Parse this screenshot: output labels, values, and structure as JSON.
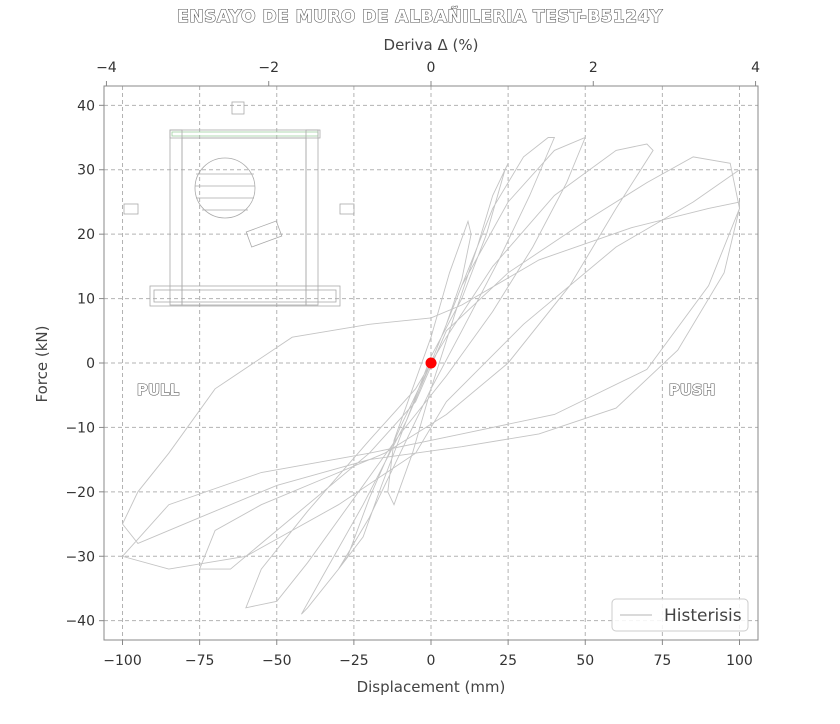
{
  "chart_data": {
    "type": "line",
    "title": "ENSAYO DE MURO DE ALBAÑILERIA TEST-B5124Y",
    "xlabel": "Displacement (mm)",
    "ylabel": "Force (kN)",
    "x2label": "Deriva Δ (%)",
    "xlim": [
      -106,
      106
    ],
    "ylim": [
      -43,
      43
    ],
    "x2lim": [
      -4.03,
      4.03
    ],
    "xticks": [
      -100,
      -75,
      -50,
      -25,
      0,
      25,
      50,
      75,
      100
    ],
    "xtick_labels": [
      "−100",
      "−75",
      "−50",
      "−25",
      "0",
      "25",
      "50",
      "75",
      "100"
    ],
    "yticks": [
      -40,
      -30,
      -20,
      -10,
      0,
      10,
      20,
      30,
      40
    ],
    "ytick_labels": [
      "−40",
      "−30",
      "−20",
      "−10",
      "0",
      "10",
      "20",
      "30",
      "40"
    ],
    "x2ticks": [
      -4,
      -2,
      0,
      2,
      4
    ],
    "x2tick_labels": [
      "−4",
      "−2",
      "0",
      "2",
      "4"
    ],
    "grid": true,
    "legend_position": "bottom-right",
    "annotations": {
      "pull": "PULL",
      "push": "PUSH"
    },
    "series": [
      {
        "name": "Histerisis",
        "color": "#c4c4c4",
        "x": [
          0,
          5,
          10,
          13,
          12,
          6,
          0,
          -6,
          -12,
          -14,
          -12,
          -6,
          0,
          8,
          15,
          20,
          25,
          24,
          18,
          10,
          0,
          -8,
          -16,
          -22,
          -30,
          -27,
          -20,
          -10,
          0,
          10,
          20,
          30,
          38,
          40,
          32,
          22,
          10,
          0,
          -10,
          -20,
          -30,
          -40,
          -42,
          -35,
          -22,
          -8,
          0,
          10,
          25,
          40,
          50,
          50,
          44,
          33,
          20,
          5,
          -10,
          -25,
          -40,
          -50,
          -60,
          -55,
          -40,
          -20,
          -5,
          5,
          20,
          40,
          60,
          70,
          72,
          60,
          45,
          25,
          5,
          -15,
          -35,
          -55,
          -70,
          -75,
          -65,
          -45,
          -20,
          -5,
          5,
          25,
          50,
          70,
          85,
          97,
          100,
          95,
          80,
          60,
          35,
          10,
          -20,
          -50,
          -75,
          -95,
          -100,
          -95,
          -85,
          -70,
          -45,
          -20,
          0,
          10,
          35,
          65,
          90,
          100,
          100,
          90,
          70,
          40,
          10,
          -20,
          -55,
          -85,
          -100,
          -85,
          -60,
          -30,
          -5,
          5,
          30,
          60,
          85,
          100
        ],
        "y": [
          0,
          6,
          13,
          20,
          22,
          14,
          4,
          -4,
          -12,
          -20,
          -22,
          -14,
          -4,
          8,
          18,
          26,
          31,
          30,
          20,
          10,
          1,
          -9,
          -19,
          -27,
          -32,
          -30,
          -21,
          -10,
          0,
          12,
          24,
          32,
          35,
          35,
          26,
          16,
          5,
          -4,
          -14,
          -24,
          -32,
          -38,
          -39,
          -33,
          -22,
          -9,
          0,
          12,
          25,
          33,
          35,
          35,
          28,
          18,
          8,
          -2,
          -11,
          -21,
          -31,
          -37,
          -38,
          -32,
          -23,
          -12,
          -4,
          4,
          15,
          26,
          33,
          34,
          33,
          24,
          12,
          0,
          -8,
          -14,
          -18,
          -22,
          -26,
          -32,
          -32,
          -24,
          -14,
          -6,
          5,
          14,
          22,
          28,
          32,
          31,
          24,
          14,
          2,
          -7,
          -11,
          -13,
          -15,
          -19,
          -24,
          -28,
          -25,
          -20,
          -14,
          -4,
          4,
          6,
          7,
          9,
          16,
          21,
          24,
          25,
          24,
          12,
          -1,
          -8,
          -11,
          -14,
          -17,
          -22,
          -30,
          -32,
          -30,
          -22,
          -14,
          -6,
          6,
          18,
          25,
          30
        ]
      }
    ],
    "highlight_point": {
      "x": 0,
      "y": 0,
      "color": "#ff0000"
    }
  }
}
